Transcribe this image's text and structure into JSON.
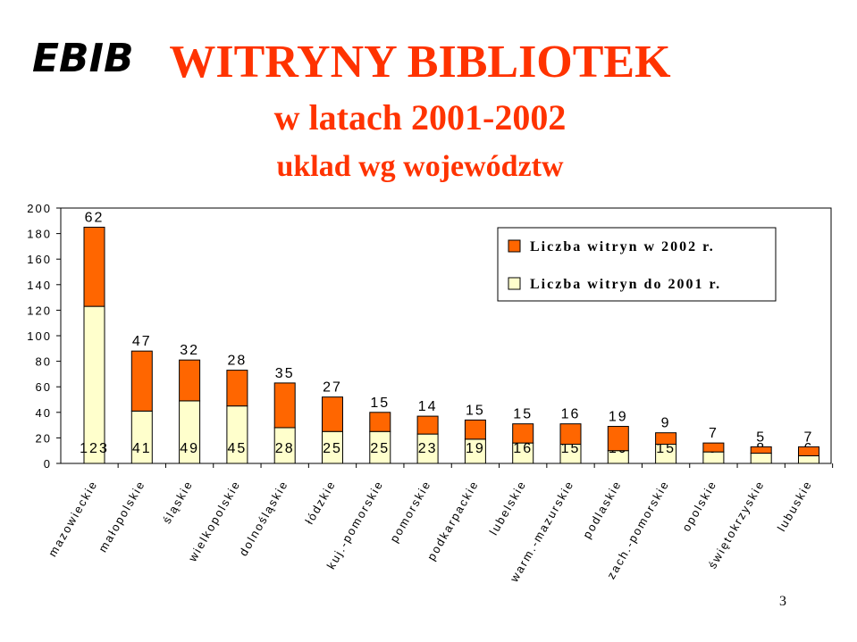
{
  "logo": "EBIB",
  "page_number": "3",
  "chart_data": {
    "type": "stacked-bar",
    "title": "WITRYNY BIBLIOTEK",
    "subtitle": "w latach 2001-2002",
    "subtitle2": "uklad wg województw",
    "categories": [
      "mazowieckie",
      "małopolskie",
      "śląskie",
      "wielkopolskie",
      "dolnośląskie",
      "łódzkie",
      "kuj.-pomorskie",
      "pomorskie",
      "podkarpackie",
      "lubelskie",
      "warm.-mazurskie",
      "podlaskie",
      "zach.-pomorskie",
      "opolskie",
      "świętokrzyskie",
      "lubuskie"
    ],
    "series": [
      {
        "name": "Liczba witryn do 2001 r.",
        "color": "#ffffcc",
        "values": [
          123,
          41,
          49,
          45,
          28,
          25,
          25,
          23,
          19,
          16,
          15,
          10,
          15,
          9,
          8,
          6
        ]
      },
      {
        "name": "Liczba witryn w 2002 r.",
        "color": "#ff6600",
        "values": [
          62,
          47,
          32,
          28,
          35,
          27,
          15,
          14,
          15,
          15,
          16,
          19,
          9,
          7,
          5,
          7
        ]
      }
    ],
    "ylim": [
      0,
      200
    ],
    "yticks": [
      0,
      20,
      40,
      60,
      80,
      100,
      120,
      140,
      160,
      180,
      200
    ],
    "legend": "top-right"
  }
}
